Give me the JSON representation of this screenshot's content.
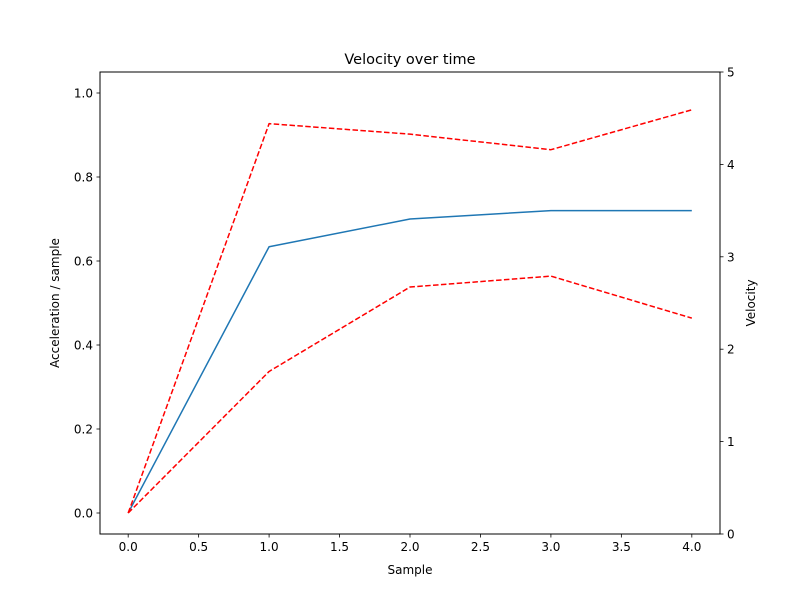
{
  "chart_data": {
    "type": "line",
    "title": "Velocity over time",
    "xlabel": "Sample",
    "ylabel_left": "Acceleration / sample",
    "ylabel_right": "Velocity",
    "x": [
      0,
      1,
      2,
      3,
      4
    ],
    "xlim": [
      -0.2,
      4.2
    ],
    "ylim_left": [
      -0.05,
      1.05
    ],
    "ylim_right": [
      0,
      5
    ],
    "x_ticks": [
      "0.0",
      "0.5",
      "1.0",
      "1.5",
      "2.0",
      "2.5",
      "3.0",
      "3.5",
      "4.0"
    ],
    "y_left_ticks": [
      "0.0",
      "0.2",
      "0.4",
      "0.6",
      "0.8",
      "1.0"
    ],
    "y_right_ticks": [
      "0",
      "1",
      "2",
      "3",
      "4",
      "5"
    ],
    "grid": false,
    "legend": "none",
    "series": [
      {
        "axis": "left",
        "style": "solid",
        "color": "#1f77b4",
        "values": [
          0.0,
          0.634,
          0.7,
          0.72,
          0.72
        ]
      },
      {
        "axis": "left",
        "style": "dashed",
        "color": "#ff0000",
        "values": [
          0.0,
          0.927,
          0.902,
          0.865,
          0.96
        ]
      },
      {
        "axis": "left",
        "style": "dashed",
        "color": "#ff0000",
        "values": [
          0.0,
          0.337,
          0.538,
          0.564,
          0.464
        ]
      }
    ]
  }
}
